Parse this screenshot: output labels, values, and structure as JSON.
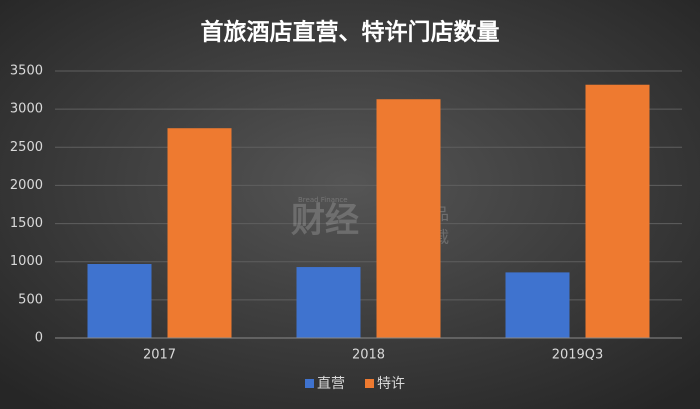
{
  "chart_data": {
    "type": "bar",
    "title": "首旅酒店直营、特许门店数量",
    "categories": [
      "2017",
      "2018",
      "2019Q3"
    ],
    "series": [
      {
        "name": "直营",
        "color": "#3f73cf",
        "values": [
          970,
          930,
          860
        ]
      },
      {
        "name": "特许",
        "color": "#ee7a30",
        "values": [
          2750,
          3130,
          3320
        ]
      }
    ],
    "ylim": [
      0,
      3500
    ],
    "yticks": [
      0,
      500,
      1000,
      1500,
      2000,
      2500,
      3000,
      3500
    ],
    "grid": true,
    "legend": "bottom",
    "watermark": [
      "财经",
      "Bread Finance",
      "原创作品",
      "禁止转载"
    ]
  }
}
